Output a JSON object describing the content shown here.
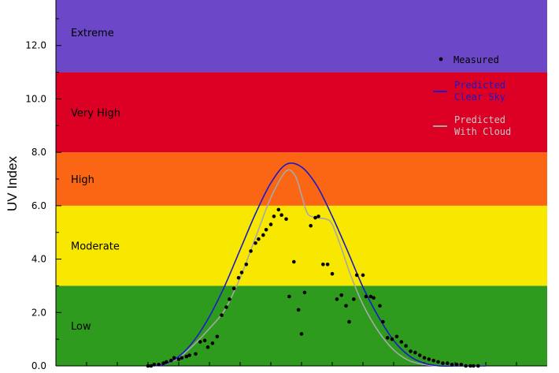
{
  "chart_data": {
    "type": "scatter",
    "ylabel": "UV Index",
    "xlabel": "",
    "ylim": [
      0,
      14
    ],
    "x_hours": [
      5,
      21
    ],
    "y_ticks": [
      "0.0",
      "2.0",
      "4.0",
      "6.0",
      "8.0",
      "10.0",
      "12.0"
    ],
    "bands": [
      {
        "label": "Low",
        "from": 0,
        "to": 3,
        "color": "#2e9a1e"
      },
      {
        "label": "Moderate",
        "from": 3,
        "to": 6,
        "color": "#f8e800"
      },
      {
        "label": "High",
        "from": 6,
        "to": 8,
        "color": "#fa6614"
      },
      {
        "label": "Very High",
        "from": 8,
        "to": 11,
        "color": "#dc0024"
      },
      {
        "label": "Extreme",
        "from": 11,
        "to": 14,
        "color": "#6c48c9"
      }
    ],
    "legend": {
      "position": "top-right",
      "measured": "Measured",
      "clear_line1": "Predicted",
      "clear_line2": "Clear Sky",
      "cloud_line1": "Predicted",
      "cloud_line2": "With Cloud"
    },
    "series": [
      {
        "name": "Predicted Clear Sky",
        "color": "#1a1ac8",
        "x": [
          8.0,
          8.5,
          9.0,
          9.5,
          10.0,
          10.5,
          11.0,
          11.5,
          12.0,
          12.5,
          13.0,
          13.5,
          14.0,
          14.5,
          15.0,
          15.5,
          16.0,
          16.5,
          17.0,
          17.5,
          18.0,
          18.5,
          19.0
        ],
        "y": [
          0.0,
          0.05,
          0.35,
          0.95,
          1.85,
          3.0,
          4.35,
          5.7,
          6.85,
          7.55,
          7.45,
          6.75,
          5.6,
          4.3,
          2.95,
          1.85,
          0.95,
          0.38,
          0.1,
          0.0,
          0.0,
          0.0,
          0.0
        ]
      },
      {
        "name": "Predicted With Cloud",
        "color": "#a8a8a8",
        "x": [
          8.0,
          8.5,
          9.0,
          9.5,
          10.0,
          10.5,
          11.0,
          11.5,
          12.0,
          12.5,
          12.8,
          13.0,
          13.2,
          13.5,
          13.8,
          14.0,
          14.3,
          14.6,
          15.0,
          15.5,
          16.0,
          16.5,
          17.0,
          17.5,
          18.0,
          18.5,
          19.0
        ],
        "y": [
          0.0,
          0.05,
          0.3,
          0.8,
          1.4,
          2.1,
          3.3,
          4.8,
          6.3,
          7.3,
          7.1,
          6.4,
          5.7,
          5.55,
          5.5,
          5.3,
          4.4,
          3.4,
          2.3,
          1.3,
          0.6,
          0.2,
          0.05,
          0.0,
          0.0,
          0.0,
          0.0
        ]
      }
    ],
    "measured": {
      "name": "Measured",
      "x": [
        8.0,
        8.1,
        8.2,
        8.35,
        8.5,
        8.6,
        8.75,
        8.85,
        9.0,
        9.1,
        9.25,
        9.35,
        9.55,
        9.7,
        9.85,
        9.95,
        10.1,
        10.25,
        10.4,
        10.55,
        10.65,
        10.8,
        10.95,
        11.05,
        11.2,
        11.35,
        11.5,
        11.6,
        11.75,
        11.85,
        12.0,
        12.1,
        12.25,
        12.35,
        12.5,
        12.6,
        12.75,
        12.9,
        13.0,
        13.1,
        13.3,
        13.45,
        13.55,
        13.7,
        13.85,
        14.0,
        14.15,
        14.3,
        14.45,
        14.55,
        14.7,
        14.8,
        15.0,
        15.1,
        15.25,
        15.35,
        15.55,
        15.65,
        15.8,
        15.95,
        16.1,
        16.25,
        16.4,
        16.55,
        16.7,
        16.85,
        17.0,
        17.15,
        17.3,
        17.45,
        17.6,
        17.75,
        17.9,
        18.05,
        18.2,
        18.35,
        18.5,
        18.6,
        18.75
      ],
      "y": [
        0.0,
        0.0,
        0.05,
        0.05,
        0.1,
        0.15,
        0.2,
        0.3,
        0.25,
        0.3,
        0.35,
        0.4,
        0.45,
        0.9,
        0.95,
        0.7,
        0.85,
        1.1,
        1.9,
        2.2,
        2.5,
        2.9,
        3.3,
        3.5,
        3.8,
        4.3,
        4.6,
        4.75,
        4.9,
        5.1,
        5.3,
        5.6,
        5.85,
        5.65,
        5.5,
        2.6,
        3.9,
        2.1,
        1.2,
        2.75,
        5.25,
        5.55,
        5.6,
        3.8,
        3.8,
        3.45,
        2.5,
        2.65,
        2.25,
        1.65,
        2.5,
        3.4,
        3.4,
        2.6,
        2.6,
        2.55,
        2.25,
        1.65,
        1.05,
        1.0,
        1.1,
        0.9,
        0.75,
        0.55,
        0.5,
        0.4,
        0.3,
        0.25,
        0.2,
        0.15,
        0.1,
        0.1,
        0.05,
        0.05,
        0.05,
        0.0,
        0.0,
        0.0,
        0.0
      ]
    }
  }
}
